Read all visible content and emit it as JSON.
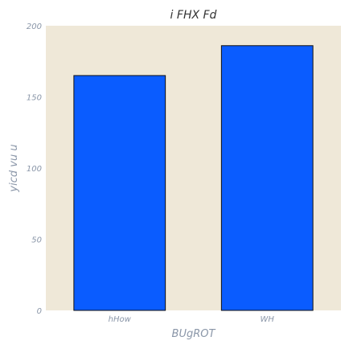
{
  "chart_data": {
    "type": "bar",
    "title": "i  FHX Fd",
    "xlabel": "BUgROT",
    "ylabel": "yicd vu u",
    "categories": [
      "hHow",
      "WH"
    ],
    "values": [
      165,
      186
    ],
    "ylim": [
      0,
      200
    ],
    "yticks": [
      0,
      50,
      100,
      150,
      200
    ],
    "grid": false,
    "colors": {
      "plot_background": "#efe8d8",
      "bar_fill": "#0a5cff",
      "bar_edge": "#111111",
      "text": "#8a96a8",
      "title_text": "#333333"
    }
  }
}
